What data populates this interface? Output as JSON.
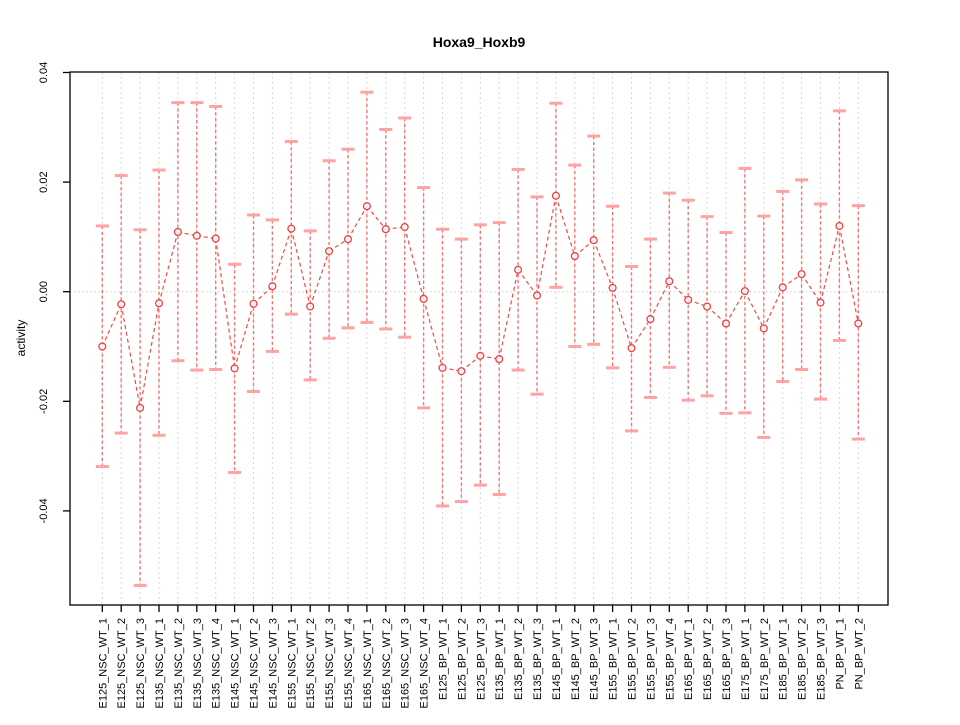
{
  "chart_data": {
    "type": "scatter",
    "subtype": "points-with-error-bars",
    "title": "Hoxa9_Hoxb9",
    "xlabel": "",
    "ylabel": "activity",
    "legend": "none",
    "grid": {
      "vertical": "dashed-at-every-category",
      "horizontal": "dotted-zero-line-only"
    },
    "yticks": [
      -0.04,
      -0.02,
      0.0,
      0.02,
      0.04
    ],
    "ytick_labels": [
      "-0.04",
      "-0.02",
      "0.00",
      "0.02",
      "0.04"
    ],
    "ylim": [
      -0.0572,
      0.0401
    ],
    "categories": [
      "E125_NSC_WT_1",
      "E125_NSC_WT_2",
      "E125_NSC_WT_3",
      "E135_NSC_WT_1",
      "E135_NSC_WT_2",
      "E135_NSC_WT_3",
      "E135_NSC_WT_4",
      "E145_NSC_WT_1",
      "E145_NSC_WT_2",
      "E145_NSC_WT_3",
      "E155_NSC_WT_1",
      "E155_NSC_WT_2",
      "E155_NSC_WT_3",
      "E155_NSC_WT_4",
      "E165_NSC_WT_1",
      "E165_NSC_WT_2",
      "E165_NSC_WT_3",
      "E165_NSC_WT_4",
      "E125_BP_WT_1",
      "E125_BP_WT_2",
      "E125_BP_WT_3",
      "E135_BP_WT_1",
      "E135_BP_WT_2",
      "E135_BP_WT_3",
      "E145_BP_WT_1",
      "E145_BP_WT_2",
      "E145_BP_WT_3",
      "E155_BP_WT_1",
      "E155_BP_WT_2",
      "E155_BP_WT_3",
      "E155_BP_WT_4",
      "E165_BP_WT_1",
      "E165_BP_WT_2",
      "E165_BP_WT_3",
      "E175_BP_WT_1",
      "E175_BP_WT_2",
      "E185_BP_WT_1",
      "E185_BP_WT_2",
      "E185_BP_WT_3",
      "PN_BP_WT_1",
      "PN_BP_WT_2"
    ],
    "series": [
      {
        "name": "activity",
        "values": [
          -0.01,
          -0.0023,
          -0.0212,
          -0.0021,
          0.0109,
          0.0102,
          0.0097,
          -0.014,
          -0.0022,
          0.001,
          0.0115,
          -0.0027,
          0.0074,
          0.0096,
          0.0156,
          0.0114,
          0.0118,
          -0.0013,
          -0.0139,
          -0.0145,
          -0.0117,
          -0.0123,
          0.004,
          -0.0007,
          0.0175,
          0.0065,
          0.0094,
          0.0007,
          -0.0103,
          -0.005,
          0.0019,
          -0.0015,
          -0.0027,
          -0.0058,
          0.0001,
          -0.0067,
          0.0008,
          0.0032,
          -0.002,
          0.012,
          -0.0058
        ],
        "lower": [
          -0.0319,
          -0.0258,
          -0.0536,
          -0.0262,
          -0.0126,
          -0.0143,
          -0.0142,
          -0.033,
          -0.0182,
          -0.0109,
          -0.0041,
          -0.0161,
          -0.0085,
          -0.0066,
          -0.0056,
          -0.0068,
          -0.0083,
          -0.0212,
          -0.0391,
          -0.0383,
          -0.0353,
          -0.037,
          -0.0143,
          -0.0187,
          0.0008,
          -0.01,
          -0.0096,
          -0.0139,
          -0.0254,
          -0.0193,
          -0.0138,
          -0.0198,
          -0.019,
          -0.0222,
          -0.0221,
          -0.0266,
          -0.0164,
          -0.0142,
          -0.0196,
          -0.0089,
          -0.0269
        ],
        "upper": [
          0.012,
          0.0212,
          0.0113,
          0.0222,
          0.0345,
          0.0345,
          0.0338,
          0.005,
          0.014,
          0.0131,
          0.0274,
          0.0111,
          0.0239,
          0.026,
          0.0364,
          0.0296,
          0.0317,
          0.019,
          0.0114,
          0.0096,
          0.0122,
          0.0126,
          0.0223,
          0.0173,
          0.0344,
          0.0231,
          0.0284,
          0.0156,
          0.0046,
          0.0096,
          0.018,
          0.0167,
          0.0137,
          0.0108,
          0.0225,
          0.0138,
          0.0183,
          0.0204,
          0.016,
          0.033,
          0.0157
        ]
      }
    ],
    "colors": {
      "point": "#ee4040",
      "connector_line": "#ee4040",
      "errorbar_line": "#f26868",
      "errorbar_cap": "#ffa2a2",
      "grid": "#d8d8d8",
      "zero_line": "#cfcfcf",
      "axis": "#000000",
      "title": "#000000"
    }
  }
}
